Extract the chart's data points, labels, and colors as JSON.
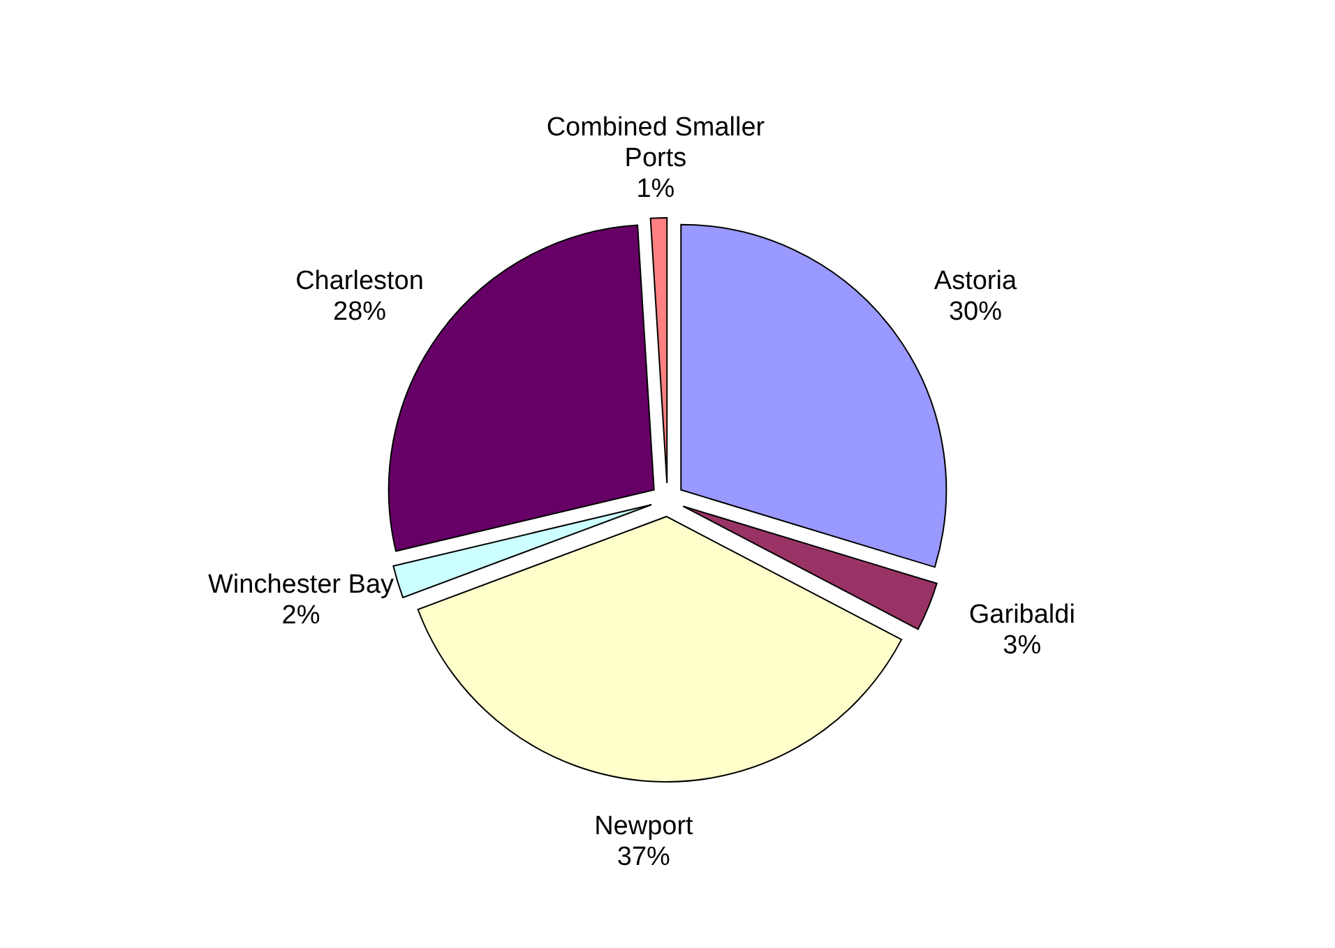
{
  "chart_data": {
    "type": "pie",
    "categories": [
      "Astoria",
      "Garibaldi",
      "Newport",
      "Winchester Bay",
      "Charleston",
      "Combined Smaller Ports"
    ],
    "values": [
      30,
      3,
      37,
      2,
      28,
      1
    ],
    "value_labels": [
      "30%",
      "3%",
      "37%",
      "2%",
      "28%",
      "1%"
    ],
    "colors": [
      "#9999ff",
      "#993366",
      "#ffffcc",
      "#ccffff",
      "#660066",
      "#ff8080"
    ]
  }
}
